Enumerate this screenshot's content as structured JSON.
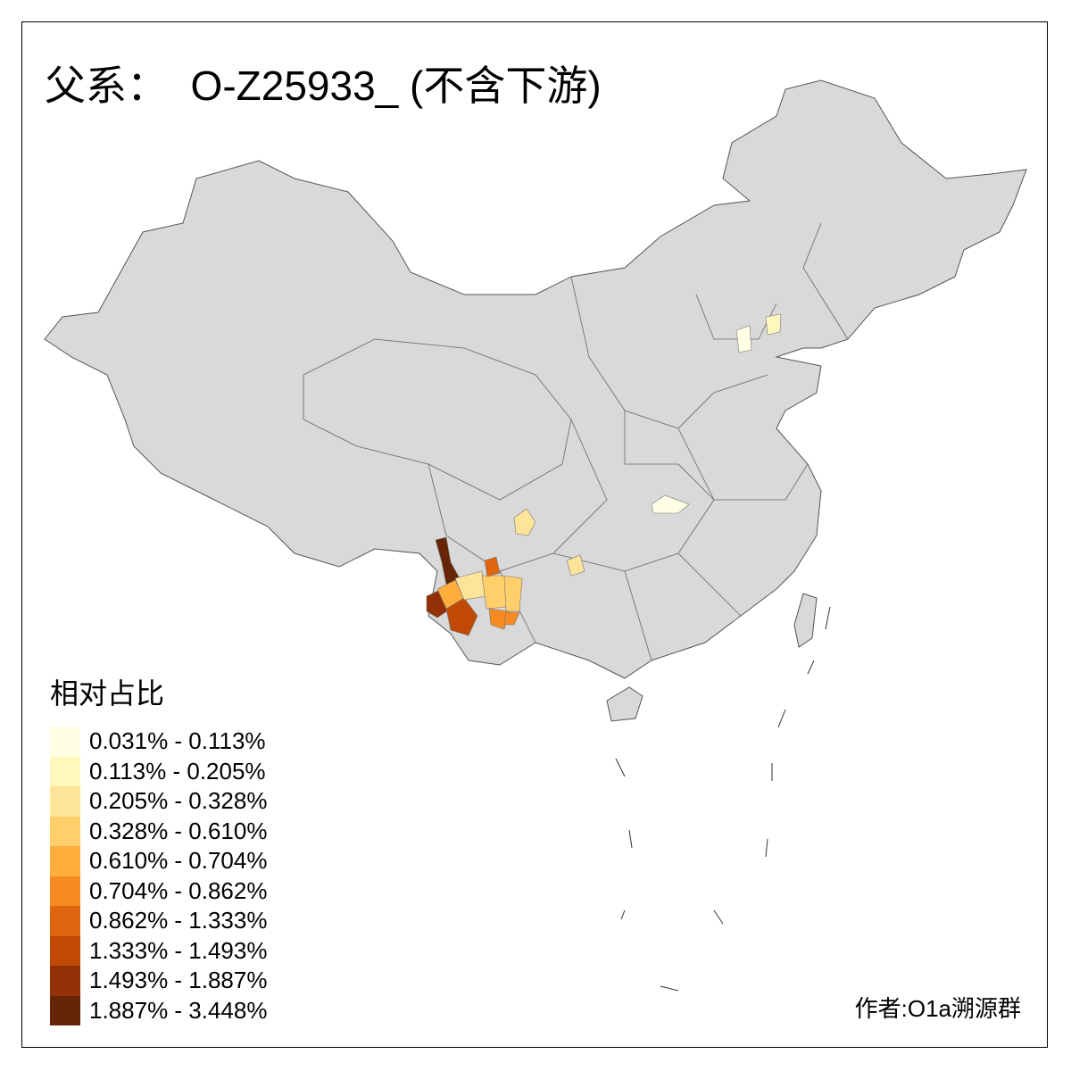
{
  "title": "父系：  O-Z25933_ (不含下游)",
  "legend": {
    "title": "相对占比",
    "items": [
      {
        "label": "0.031% - 0.113%",
        "color": "#FFFFE5"
      },
      {
        "label": "0.113% - 0.205%",
        "color": "#FFF7BC"
      },
      {
        "label": "0.205% - 0.328%",
        "color": "#FEE39A"
      },
      {
        "label": "0.328% - 0.610%",
        "color": "#FECF6A"
      },
      {
        "label": "0.610% - 0.704%",
        "color": "#FDAE3C"
      },
      {
        "label": "0.704% - 0.862%",
        "color": "#F58A22"
      },
      {
        "label": "0.862% - 1.333%",
        "color": "#E0650F"
      },
      {
        "label": "1.333% - 1.493%",
        "color": "#C04A05"
      },
      {
        "label": "1.493% - 1.887%",
        "color": "#923006"
      },
      {
        "label": "1.887% - 3.448%",
        "color": "#662506"
      }
    ]
  },
  "base_color": "#D9D9D9",
  "credit": "作者:O1a溯源群"
}
